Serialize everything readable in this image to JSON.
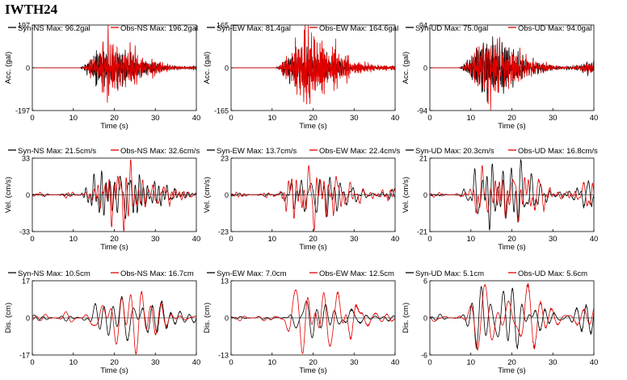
{
  "station": "IWTH24",
  "colors": {
    "syn": "#000000",
    "obs": "#e00000"
  },
  "chart_data": [
    {
      "type": "line",
      "component": "NS",
      "quantity": "acc",
      "ylabel": "Acc. (gal)",
      "xlabel": "Time (s)",
      "xlim": [
        0,
        40
      ],
      "xticks": [
        0,
        10,
        20,
        30,
        40
      ],
      "ylim": [
        -197,
        197
      ],
      "ytick_labels": [
        "197",
        "0",
        "-197"
      ],
      "series": [
        {
          "name": "Syn-NS",
          "label": "Syn-NS  Max: 96.2gal",
          "max": 96.2
        },
        {
          "name": "Obs-NS",
          "label": "Obs-NS  Max: 196.2gal",
          "max": 196.2
        }
      ]
    },
    {
      "type": "line",
      "component": "EW",
      "quantity": "acc",
      "ylabel": "Acc. (gal)",
      "xlabel": "Time (s)",
      "xlim": [
        0,
        40
      ],
      "xticks": [
        0,
        10,
        20,
        30,
        40
      ],
      "ylim": [
        -165,
        165
      ],
      "ytick_labels": [
        "165",
        "0",
        "-165"
      ],
      "series": [
        {
          "name": "Syn-EW",
          "label": "Syn-EW  Max: 81.4gal",
          "max": 81.4
        },
        {
          "name": "Obs-EW",
          "label": "Obs-EW  Max: 164.6gal",
          "max": 164.6
        }
      ]
    },
    {
      "type": "line",
      "component": "UD",
      "quantity": "acc",
      "ylabel": "Acc. (gal)",
      "xlabel": "Time (s)",
      "xlim": [
        0,
        40
      ],
      "xticks": [
        0,
        10,
        20,
        30,
        40
      ],
      "ylim": [
        -94,
        94
      ],
      "ytick_labels": [
        "94",
        "0",
        "-94"
      ],
      "series": [
        {
          "name": "Syn-UD",
          "label": "Syn-UD  Max: 75.0gal",
          "max": 75.0
        },
        {
          "name": "Obs-UD",
          "label": "Obs-UD  Max: 94.0gal",
          "max": 94.0
        }
      ]
    },
    {
      "type": "line",
      "component": "NS",
      "quantity": "vel",
      "ylabel": "Vel. (cm/s)",
      "xlabel": "Time (s)",
      "xlim": [
        0,
        40
      ],
      "xticks": [
        0,
        10,
        20,
        30,
        40
      ],
      "ylim": [
        -33,
        33
      ],
      "ytick_labels": [
        "33",
        "0",
        "-33"
      ],
      "series": [
        {
          "name": "Syn-NS",
          "label": "Syn-NS  Max: 21.5cm/s",
          "max": 21.5
        },
        {
          "name": "Obs-NS",
          "label": "Obs-NS  Max: 32.6cm/s",
          "max": 32.6
        }
      ]
    },
    {
      "type": "line",
      "component": "EW",
      "quantity": "vel",
      "ylabel": "Vel. (cm/s)",
      "xlabel": "Time (s)",
      "xlim": [
        0,
        40
      ],
      "xticks": [
        0,
        10,
        20,
        30,
        40
      ],
      "ylim": [
        -23,
        23
      ],
      "ytick_labels": [
        "23",
        "0",
        "-23"
      ],
      "series": [
        {
          "name": "Syn-EW",
          "label": "Syn-EW  Max: 13.7cm/s",
          "max": 13.7
        },
        {
          "name": "Obs-EW",
          "label": "Obs-EW  Max: 22.4cm/s",
          "max": 22.4
        }
      ]
    },
    {
      "type": "line",
      "component": "UD",
      "quantity": "vel",
      "ylabel": "Vel. (cm/s)",
      "xlabel": "Time (s)",
      "xlim": [
        0,
        40
      ],
      "xticks": [
        0,
        10,
        20,
        30,
        40
      ],
      "ylim": [
        -21,
        21
      ],
      "ytick_labels": [
        "21",
        "0",
        "-21"
      ],
      "series": [
        {
          "name": "Syn-UD",
          "label": "Syn-UD  Max: 20.3cm/s",
          "max": 20.3
        },
        {
          "name": "Obs-UD",
          "label": "Obs-UD  Max: 16.8cm/s",
          "max": 16.8
        }
      ]
    },
    {
      "type": "line",
      "component": "NS",
      "quantity": "dis",
      "ylabel": "Dis. (cm)",
      "xlabel": "Time (s)",
      "xlim": [
        0,
        40
      ],
      "xticks": [
        0,
        10,
        20,
        30,
        40
      ],
      "ylim": [
        -17,
        17
      ],
      "ytick_labels": [
        "17",
        "0",
        "-17"
      ],
      "series": [
        {
          "name": "Syn-NS",
          "label": "Syn-NS  Max: 10.5cm",
          "max": 10.5
        },
        {
          "name": "Obs-NS",
          "label": "Obs-NS  Max: 16.7cm",
          "max": 16.7
        }
      ]
    },
    {
      "type": "line",
      "component": "EW",
      "quantity": "dis",
      "ylabel": "Dis. (cm)",
      "xlabel": "Time (s)",
      "xlim": [
        0,
        40
      ],
      "xticks": [
        0,
        10,
        20,
        30,
        40
      ],
      "ylim": [
        -13,
        13
      ],
      "ytick_labels": [
        "13",
        "0",
        "-13"
      ],
      "series": [
        {
          "name": "Syn-EW",
          "label": "Syn-EW  Max: 7.0cm",
          "max": 7.0
        },
        {
          "name": "Obs-EW",
          "label": "Obs-EW  Max: 12.5cm",
          "max": 12.5
        }
      ]
    },
    {
      "type": "line",
      "component": "UD",
      "quantity": "dis",
      "ylabel": "Dis. (cm)",
      "xlabel": "Time (s)",
      "xlim": [
        0,
        40
      ],
      "xticks": [
        0,
        10,
        20,
        30,
        40
      ],
      "ylim": [
        -6,
        6
      ],
      "ytick_labels": [
        "6",
        "0",
        "-6"
      ],
      "series": [
        {
          "name": "Syn-UD",
          "label": "Syn-UD  Max: 5.1cm",
          "max": 5.1
        },
        {
          "name": "Obs-UD",
          "label": "Obs-UD  Max: 5.6cm",
          "max": 5.6
        }
      ]
    }
  ]
}
